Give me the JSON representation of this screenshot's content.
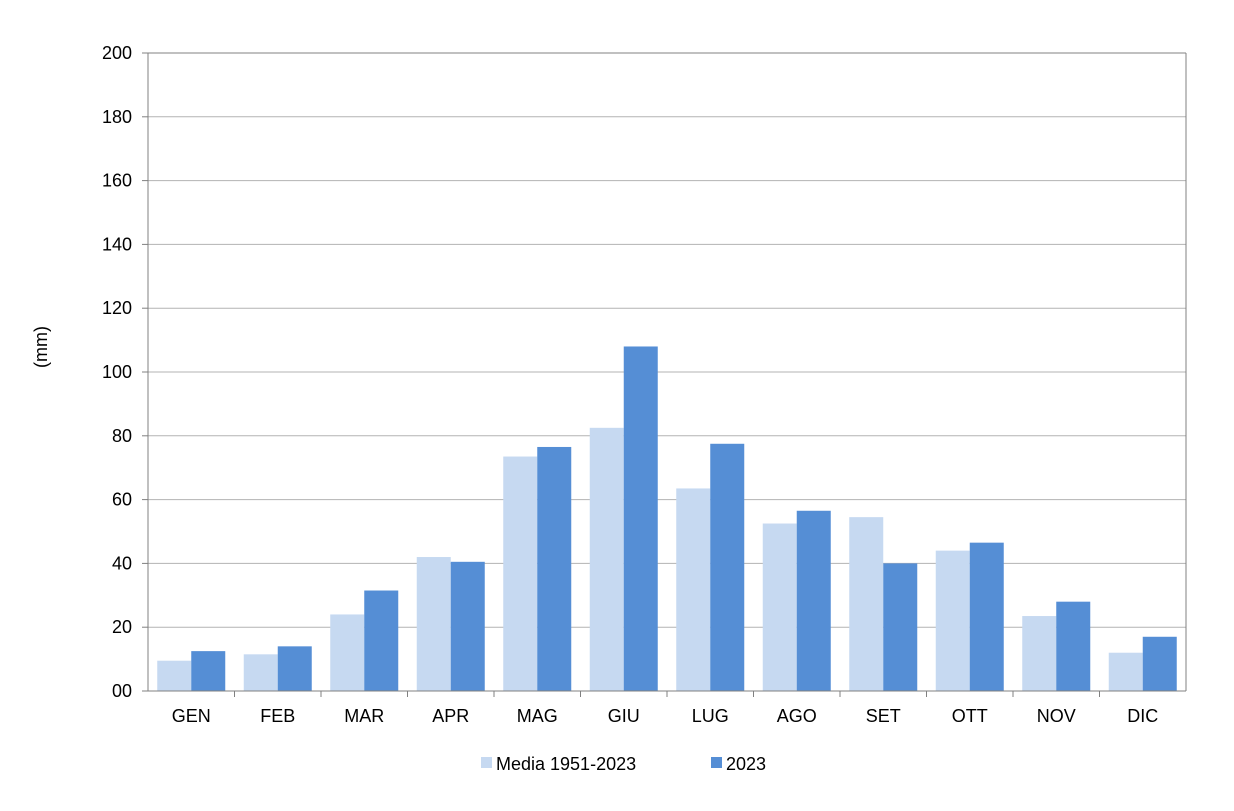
{
  "chart_data": {
    "type": "bar",
    "title": "",
    "xlabel": "",
    "ylabel": "(mm)",
    "ylim": [
      0,
      200
    ],
    "ytick_step": 20,
    "ytick_labels": [
      "00",
      "20",
      "40",
      "60",
      "80",
      "100",
      "120",
      "140",
      "160",
      "180",
      "200"
    ],
    "grid": true,
    "legend_position": "bottom",
    "categories": [
      "GEN",
      "FEB",
      "MAR",
      "APR",
      "MAG",
      "GIU",
      "LUG",
      "AGO",
      "SET",
      "OTT",
      "NOV",
      "DIC"
    ],
    "series": [
      {
        "name": "Media 1951-2023",
        "color": "#c6d9f1",
        "values": [
          9.5,
          11.5,
          24,
          42,
          73.5,
          82.5,
          63.5,
          52.5,
          54.5,
          44,
          23.5,
          12
        ]
      },
      {
        "name": "2023",
        "color": "#558ed5",
        "values": [
          12.5,
          14,
          31.5,
          40.5,
          76.5,
          108,
          77.5,
          56.5,
          40,
          46.5,
          28,
          17
        ]
      }
    ]
  }
}
